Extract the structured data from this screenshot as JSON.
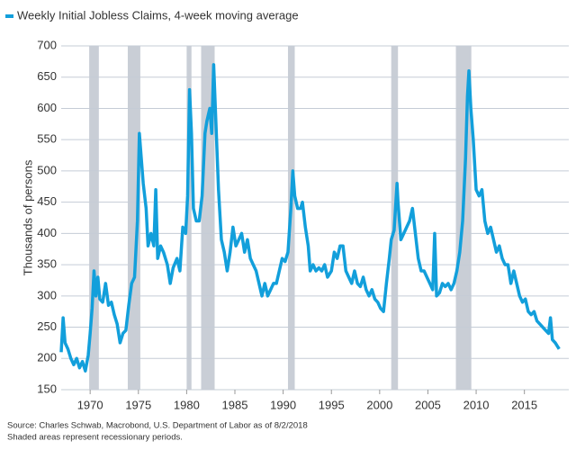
{
  "chart_data": {
    "type": "line",
    "title": "Weekly Initial Jobless Claims, 4-week moving average",
    "ylabel": "Thousands of persons",
    "source": "Source: Charles Schwab, Macrobond, U.S. Department of Labor as of 8/2/2018",
    "note": "Shaded areas represent recessionary periods.",
    "xlim": [
      1967,
      2019.6
    ],
    "ylim": [
      150,
      700
    ],
    "xticks": [
      1970,
      1975,
      1980,
      1985,
      1990,
      1995,
      2000,
      2005,
      2010,
      2015
    ],
    "yticks": [
      150,
      200,
      250,
      300,
      350,
      400,
      450,
      500,
      550,
      600,
      650,
      700
    ],
    "grid": true,
    "recession_color": "#c9ced6",
    "recessions": [
      [
        1969.9,
        1970.9
      ],
      [
        1973.9,
        1975.2
      ],
      [
        1980.0,
        1980.5
      ],
      [
        1981.5,
        1982.9
      ],
      [
        1990.5,
        1991.2
      ],
      [
        2001.2,
        2001.9
      ],
      [
        2007.9,
        2009.5
      ]
    ],
    "series": [
      {
        "name": "Weekly Initial Jobless Claims, 4-week moving average",
        "color": "#129fdb",
        "x": [
          1967.0,
          1967.2,
          1967.4,
          1967.7,
          1968.0,
          1968.3,
          1968.6,
          1968.9,
          1969.2,
          1969.5,
          1969.8,
          1970.0,
          1970.2,
          1970.4,
          1970.6,
          1970.8,
          1971.0,
          1971.3,
          1971.6,
          1971.9,
          1972.2,
          1972.5,
          1972.8,
          1973.1,
          1973.4,
          1973.7,
          1974.0,
          1974.3,
          1974.6,
          1974.9,
          1975.1,
          1975.3,
          1975.5,
          1975.8,
          1976.0,
          1976.3,
          1976.6,
          1976.8,
          1977.0,
          1977.3,
          1977.6,
          1978.0,
          1978.3,
          1978.6,
          1979.0,
          1979.3,
          1979.6,
          1979.9,
          1980.1,
          1980.3,
          1980.5,
          1980.7,
          1981.0,
          1981.3,
          1981.6,
          1981.9,
          1982.1,
          1982.4,
          1982.6,
          1982.8,
          1983.0,
          1983.3,
          1983.6,
          1983.9,
          1984.2,
          1984.5,
          1984.8,
          1985.1,
          1985.4,
          1985.7,
          1986.0,
          1986.3,
          1986.6,
          1986.9,
          1987.2,
          1987.5,
          1987.8,
          1988.1,
          1988.4,
          1988.7,
          1989.0,
          1989.3,
          1989.6,
          1989.9,
          1990.2,
          1990.5,
          1990.8,
          1991.0,
          1991.2,
          1991.5,
          1991.8,
          1992.0,
          1992.3,
          1992.6,
          1992.8,
          1993.1,
          1993.4,
          1993.7,
          1994.0,
          1994.3,
          1994.6,
          1995.0,
          1995.3,
          1995.6,
          1995.9,
          1996.2,
          1996.5,
          1996.8,
          1997.1,
          1997.4,
          1997.7,
          1998.0,
          1998.3,
          1998.6,
          1998.9,
          1999.2,
          1999.5,
          1999.8,
          2000.1,
          2000.4,
          2000.7,
          2001.0,
          2001.2,
          2001.5,
          2001.8,
          2001.9,
          2002.2,
          2002.5,
          2002.8,
          2003.1,
          2003.4,
          2003.7,
          2004.0,
          2004.3,
          2004.6,
          2004.9,
          2005.2,
          2005.5,
          2005.7,
          2005.9,
          2006.2,
          2006.5,
          2006.8,
          2007.1,
          2007.4,
          2007.7,
          2008.0,
          2008.3,
          2008.6,
          2008.9,
          2009.1,
          2009.25,
          2009.45,
          2009.7,
          2010.0,
          2010.3,
          2010.6,
          2010.9,
          2011.2,
          2011.5,
          2011.8,
          2012.1,
          2012.4,
          2012.7,
          2013.0,
          2013.3,
          2013.6,
          2013.9,
          2014.2,
          2014.5,
          2014.8,
          2015.1,
          2015.4,
          2015.7,
          2016.0,
          2016.3,
          2016.6,
          2016.9,
          2017.2,
          2017.5,
          2017.7,
          2017.9,
          2018.2,
          2018.4,
          2018.6
        ],
        "values": [
          210,
          265,
          225,
          215,
          200,
          190,
          200,
          185,
          195,
          180,
          205,
          240,
          280,
          340,
          300,
          330,
          295,
          290,
          320,
          285,
          290,
          270,
          255,
          225,
          240,
          245,
          285,
          320,
          330,
          420,
          560,
          520,
          480,
          440,
          380,
          400,
          380,
          470,
          360,
          380,
          370,
          350,
          320,
          345,
          360,
          340,
          410,
          400,
          460,
          630,
          560,
          440,
          420,
          420,
          460,
          560,
          580,
          600,
          560,
          670,
          590,
          470,
          390,
          370,
          340,
          370,
          410,
          380,
          390,
          400,
          370,
          390,
          360,
          350,
          340,
          320,
          300,
          320,
          300,
          310,
          320,
          320,
          340,
          360,
          355,
          370,
          440,
          500,
          460,
          440,
          440,
          450,
          410,
          380,
          340,
          350,
          340,
          345,
          340,
          350,
          330,
          340,
          370,
          360,
          380,
          380,
          340,
          330,
          320,
          340,
          320,
          315,
          330,
          310,
          300,
          310,
          295,
          290,
          280,
          275,
          320,
          360,
          390,
          405,
          480,
          450,
          390,
          400,
          410,
          420,
          440,
          400,
          360,
          340,
          340,
          330,
          320,
          310,
          400,
          300,
          305,
          320,
          315,
          320,
          310,
          320,
          340,
          370,
          420,
          520,
          620,
          660,
          600,
          550,
          470,
          460,
          470,
          420,
          400,
          410,
          390,
          370,
          380,
          360,
          350,
          350,
          320,
          340,
          320,
          300,
          290,
          295,
          275,
          270,
          275,
          260,
          255,
          250,
          245,
          240,
          265,
          230,
          225,
          220,
          215
        ]
      }
    ]
  }
}
